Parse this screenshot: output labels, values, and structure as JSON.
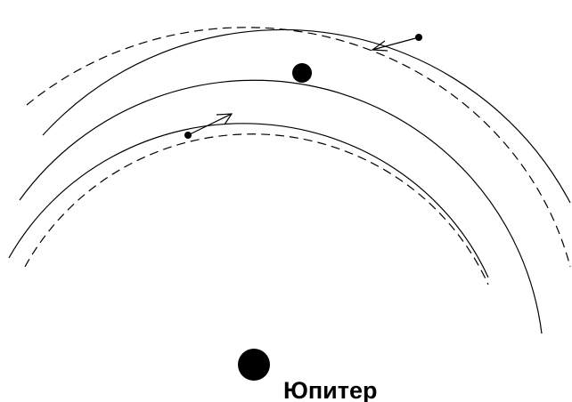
{
  "labels": {
    "jupiter": "Юпитер"
  }
}
